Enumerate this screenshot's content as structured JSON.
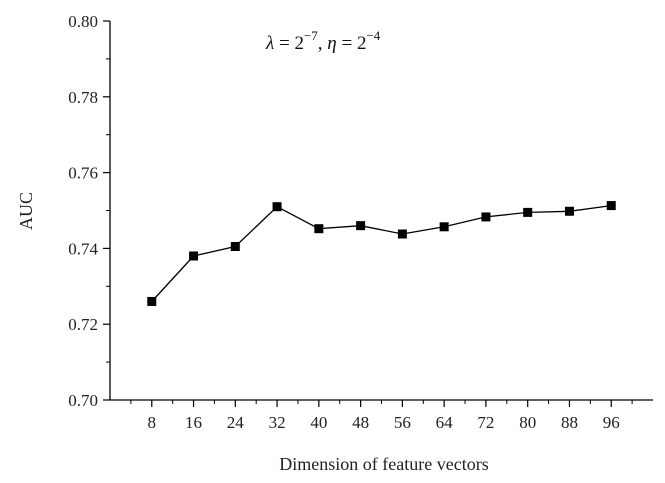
{
  "chart_data": {
    "type": "line",
    "title": "",
    "xlabel": "Dimension of feature vectors",
    "ylabel": "AUC",
    "x": [
      8,
      16,
      24,
      32,
      40,
      48,
      56,
      64,
      72,
      80,
      88,
      96
    ],
    "series": [
      {
        "values": [
          0.726,
          0.738,
          0.7405,
          0.751,
          0.7452,
          0.746,
          0.7438,
          0.7457,
          0.7483,
          0.7495,
          0.7498,
          0.7513
        ]
      }
    ],
    "xlim": [
      0,
      104
    ],
    "ylim": [
      0.7,
      0.8
    ],
    "xticks": [
      8,
      16,
      24,
      32,
      40,
      48,
      56,
      64,
      72,
      80,
      88,
      96
    ],
    "xtick_labels": [
      "8",
      "16",
      "24",
      "32",
      "40",
      "48",
      "56",
      "64",
      "72",
      "80",
      "88",
      "96"
    ],
    "yticks": [
      0.7,
      0.72,
      0.74,
      0.76,
      0.78,
      0.8
    ],
    "ytick_labels": [
      "0.70",
      "0.72",
      "0.74",
      "0.76",
      "0.78",
      "0.80"
    ],
    "annotation": {
      "lambda_symbol": "λ",
      "lambda_eq": " = 2",
      "lambda_exp": "−7",
      "comma": ", ",
      "eta_symbol": "η",
      "eta_eq": " = 2",
      "eta_exp": "−4"
    },
    "marker": "square",
    "line_color": "#000000",
    "grid": false,
    "legend": "none"
  }
}
